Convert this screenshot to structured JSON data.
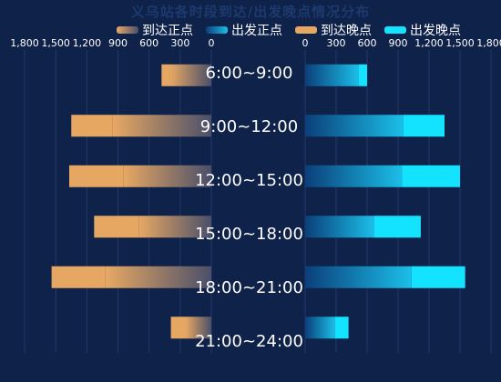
{
  "title": "义乌站各时段到达/出发晚点情况分布",
  "legend": {
    "arrive_ontime": "到达正点",
    "depart_ontime": "出发正点",
    "arrive_late": "到达晚点",
    "depart_late": "出发晚点"
  },
  "colors": {
    "background": "#0f2249",
    "arrive_ontime_gradient": [
      "#e8a863",
      "#4a4f6a"
    ],
    "arrive_late": "#e6a763",
    "depart_ontime_gradient": [
      "#0b3f7a",
      "#1bbfe8"
    ],
    "depart_late": "#13e3ff"
  },
  "chart_data": {
    "type": "bar",
    "orientation": "horizontal-butterfly",
    "categories": [
      "6:00~9:00",
      "9:00~12:00",
      "12:00~15:00",
      "15:00~18:00",
      "18:00~21:00",
      "21:00~24:00"
    ],
    "left_axis": {
      "ticks": [
        "1,800",
        "1,500",
        "1,200",
        "900",
        "600",
        "300",
        "0"
      ],
      "range": [
        0,
        1800
      ],
      "reversed": true
    },
    "right_axis": {
      "ticks": [
        "0",
        "300",
        "600",
        "900",
        "1,200",
        "1,500",
        "1,800"
      ],
      "range": [
        0,
        1800
      ]
    },
    "series": [
      {
        "name": "到达正点",
        "side": "left",
        "stack": "arrive",
        "values": [
          400,
          950,
          850,
          700,
          1020,
          250
        ]
      },
      {
        "name": "到达晚点",
        "side": "left",
        "stack": "arrive",
        "values": [
          80,
          400,
          520,
          430,
          520,
          140
        ]
      },
      {
        "name": "出发正点",
        "side": "right",
        "stack": "depart",
        "values": [
          520,
          950,
          940,
          670,
          1030,
          290
        ]
      },
      {
        "name": "出发晚点",
        "side": "right",
        "stack": "depart",
        "values": [
          80,
          400,
          560,
          450,
          520,
          130
        ]
      }
    ],
    "grid": true
  }
}
